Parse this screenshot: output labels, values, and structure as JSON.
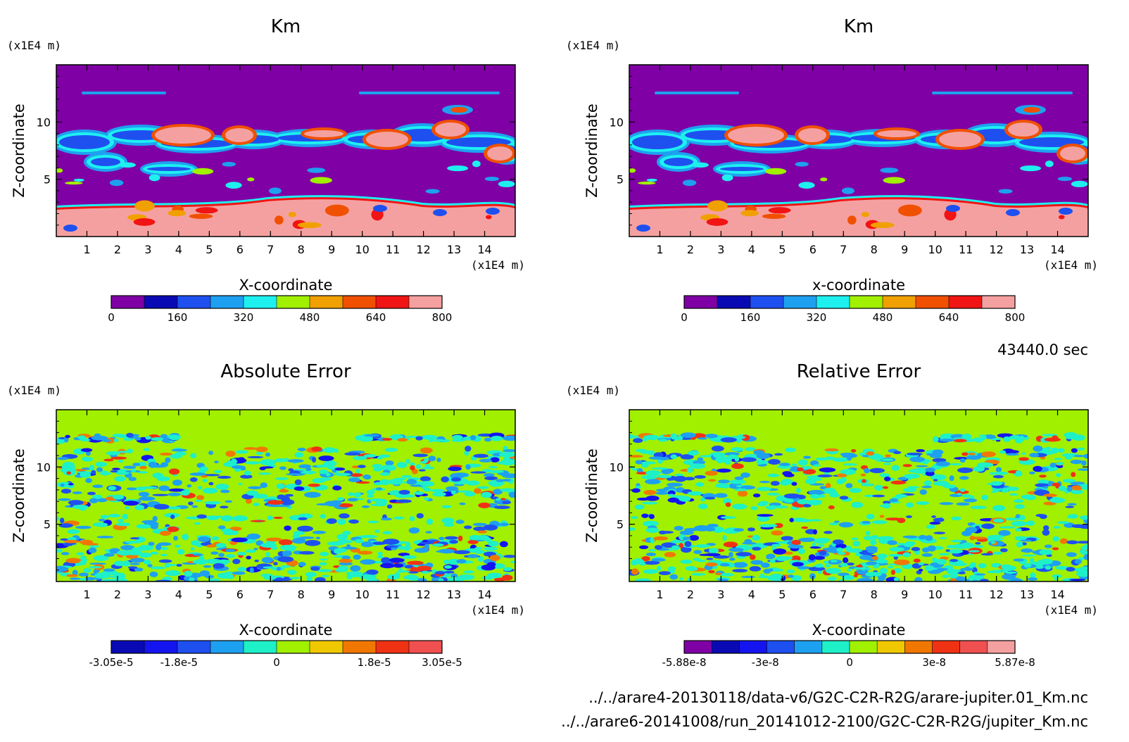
{
  "chart_data": [
    {
      "type": "heatmap",
      "title": "Km",
      "xlabel": "X-coordinate",
      "ylabel": "Z-coordinate",
      "x_unit": "(x1E4 m)",
      "y_unit": "(x1E4 m)",
      "xlim": [
        0,
        15
      ],
      "ylim": [
        0,
        15
      ],
      "x_ticks": [
        1,
        2,
        3,
        4,
        5,
        6,
        7,
        8,
        9,
        10,
        11,
        12,
        13,
        14
      ],
      "y_ticks": [
        5,
        10
      ],
      "colorbar": {
        "levels": [
          0,
          80,
          160,
          240,
          320,
          400,
          480,
          560,
          640,
          720,
          800
        ],
        "tick_values": [
          0,
          160,
          320,
          480,
          640,
          800
        ],
        "tick_labels": [
          "0",
          "160",
          "320",
          "480",
          "640",
          "800"
        ],
        "colors": [
          "#7f00a5",
          "#0a0ab4",
          "#1e50f0",
          "#1ea0f0",
          "#1ef0f0",
          "#a0f000",
          "#f0a000",
          "#f05000",
          "#f01414",
          "#f5a0a0"
        ]
      },
      "field": "Km",
      "grid": false,
      "background_level": 0
    },
    {
      "type": "heatmap",
      "title": "Km",
      "xlabel": "x-coordinate",
      "ylabel": "Z-coordinate",
      "x_unit": "(x1E4 m)",
      "y_unit": "(x1E4 m)",
      "xlim": [
        0,
        15
      ],
      "ylim": [
        0,
        15
      ],
      "x_ticks": [
        1,
        2,
        3,
        4,
        5,
        6,
        7,
        8,
        9,
        10,
        11,
        12,
        13,
        14
      ],
      "y_ticks": [
        5,
        10
      ],
      "colorbar": {
        "levels": [
          0,
          80,
          160,
          240,
          320,
          400,
          480,
          560,
          640,
          720,
          800
        ],
        "tick_values": [
          0,
          160,
          320,
          480,
          640,
          800
        ],
        "tick_labels": [
          "0",
          "160",
          "320",
          "480",
          "640",
          "800"
        ],
        "colors": [
          "#7f00a5",
          "#0a0ab4",
          "#1e50f0",
          "#1ea0f0",
          "#1ef0f0",
          "#a0f000",
          "#f0a000",
          "#f05000",
          "#f01414",
          "#f5a0a0"
        ]
      },
      "field": "Km",
      "grid": false,
      "background_level": 0
    },
    {
      "type": "heatmap",
      "title": "Absolute Error",
      "xlabel": "X-coordinate",
      "ylabel": "Z-coordinate",
      "x_unit": "(x1E4 m)",
      "y_unit": "(x1E4 m)",
      "xlim": [
        0,
        15
      ],
      "ylim": [
        0,
        15
      ],
      "x_ticks": [
        1,
        2,
        3,
        4,
        5,
        6,
        7,
        8,
        9,
        10,
        11,
        12,
        13,
        14
      ],
      "y_ticks": [
        5,
        10
      ],
      "colorbar": {
        "levels": [
          -3.05e-05,
          -2.44e-05,
          -1.8e-05,
          -1.22e-05,
          -6.1e-06,
          0,
          6.1e-06,
          1.22e-05,
          1.8e-05,
          2.44e-05,
          3.05e-05
        ],
        "tick_values": [
          -3.05e-05,
          -1.8e-05,
          0,
          1.8e-05,
          3.05e-05
        ],
        "tick_labels": [
          "-3.05e-5",
          "-1.8e-5",
          "0",
          "1.8e-5",
          "3.05e-5"
        ],
        "colors": [
          "#0a0ab4",
          "#1414f0",
          "#1e50f0",
          "#1ea0f0",
          "#1ef0c8",
          "#a0f000",
          "#f0c800",
          "#f07800",
          "#f03214",
          "#f05050"
        ]
      },
      "field": "Km absolute error",
      "grid": false,
      "background_level": 0
    },
    {
      "type": "heatmap",
      "title": "Relative Error",
      "xlabel": "X-coordinate",
      "ylabel": "Z-coordinate",
      "x_unit": "(x1E4 m)",
      "y_unit": "(x1E4 m)",
      "xlim": [
        0,
        15
      ],
      "ylim": [
        0,
        15
      ],
      "x_ticks": [
        1,
        2,
        3,
        4,
        5,
        6,
        7,
        8,
        9,
        10,
        11,
        12,
        13,
        14
      ],
      "y_ticks": [
        5,
        10
      ],
      "colorbar": {
        "levels": [
          -5.88e-08,
          -4.7e-08,
          -3.5e-08,
          -3e-08,
          -2e-08,
          -1e-08,
          0,
          1e-08,
          2e-08,
          3e-08,
          4e-08,
          5e-08,
          5.87e-08
        ],
        "tick_values": [
          -5.88e-08,
          -3e-08,
          0,
          3e-08,
          5.87e-08
        ],
        "tick_labels": [
          "-5.88e-8",
          "-3e-8",
          "0",
          "3e-8",
          "5.87e-8"
        ],
        "colors": [
          "#7f00a5",
          "#0a0ab4",
          "#1414f0",
          "#1e50f0",
          "#1ea0f0",
          "#1ef0c8",
          "#a0f000",
          "#f0c800",
          "#f07800",
          "#f03214",
          "#f05050",
          "#f5a0a0"
        ]
      },
      "field": "Km relative error",
      "grid": false,
      "background_level": 0
    }
  ],
  "info": {
    "time_label": "43440.0 sec",
    "file_1": "../../arare4-20130118/data-v6/G2C-C2R-R2G/arare-jupiter.01_Km.nc",
    "file_2": "../../arare6-20141008/run_20141012-2100/G2C-C2R-R2G/jupiter_Km.nc"
  }
}
